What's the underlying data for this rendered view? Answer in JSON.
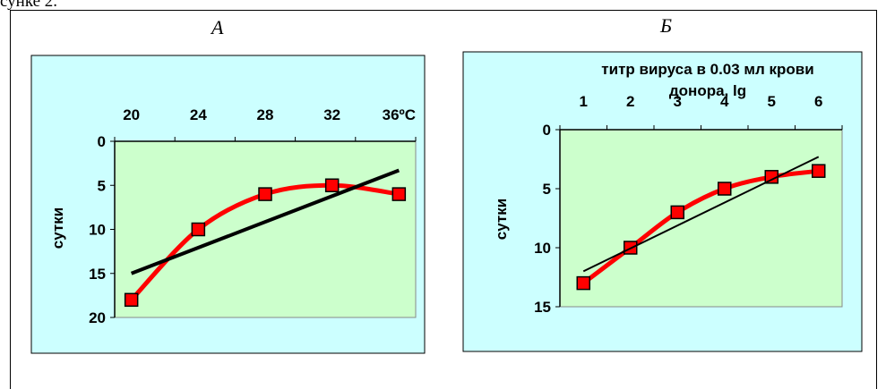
{
  "page": {
    "top_text": "сунке 2."
  },
  "chart_data": [
    {
      "panel_letter": "А",
      "type": "line",
      "title": "",
      "xlabel": "",
      "ylabel": "сутки",
      "x_ticks": [
        "20",
        "24",
        "28",
        "32",
        "36ºC"
      ],
      "y_ticks": [
        "0",
        "5",
        "10",
        "15",
        "20"
      ],
      "xlim": [
        19,
        37
      ],
      "ylim": [
        0,
        20
      ],
      "y_inverted": true,
      "x_axis_position": "top",
      "series": [
        {
          "type": "smooth-line-with-markers",
          "color": "#ff0000",
          "marker_color": "#ff0000",
          "x": [
            20,
            24,
            28,
            32,
            36
          ],
          "y": [
            18,
            10,
            6,
            5,
            6
          ]
        },
        {
          "type": "trendline",
          "color": "#000000",
          "x": [
            20,
            36
          ],
          "y": [
            15,
            3.3
          ]
        }
      ],
      "colors": {
        "outer_background": "#ccffff",
        "plot_background": "#ccffcc"
      }
    },
    {
      "panel_letter": "Б",
      "type": "line",
      "title": "",
      "xlabel": "титр вируса в 0.03 мл крови донора, lg",
      "ylabel": "сутки",
      "x_ticks": [
        "1",
        "2",
        "3",
        "4",
        "5",
        "6"
      ],
      "y_ticks": [
        "0",
        "5",
        "10",
        "15"
      ],
      "xlim": [
        0.5,
        6.5
      ],
      "ylim": [
        0,
        15
      ],
      "y_inverted": true,
      "x_axis_position": "top",
      "series": [
        {
          "type": "smooth-line-with-markers",
          "color": "#ff0000",
          "marker_color": "#ff0000",
          "x": [
            1,
            2,
            3,
            4,
            5,
            6
          ],
          "y": [
            13,
            10,
            7,
            5,
            4,
            3.5
          ]
        },
        {
          "type": "trendline",
          "color": "#000000",
          "x": [
            1,
            6
          ],
          "y": [
            12,
            2.3
          ]
        }
      ],
      "colors": {
        "outer_background": "#ccffff",
        "plot_background": "#ccffcc"
      }
    }
  ]
}
